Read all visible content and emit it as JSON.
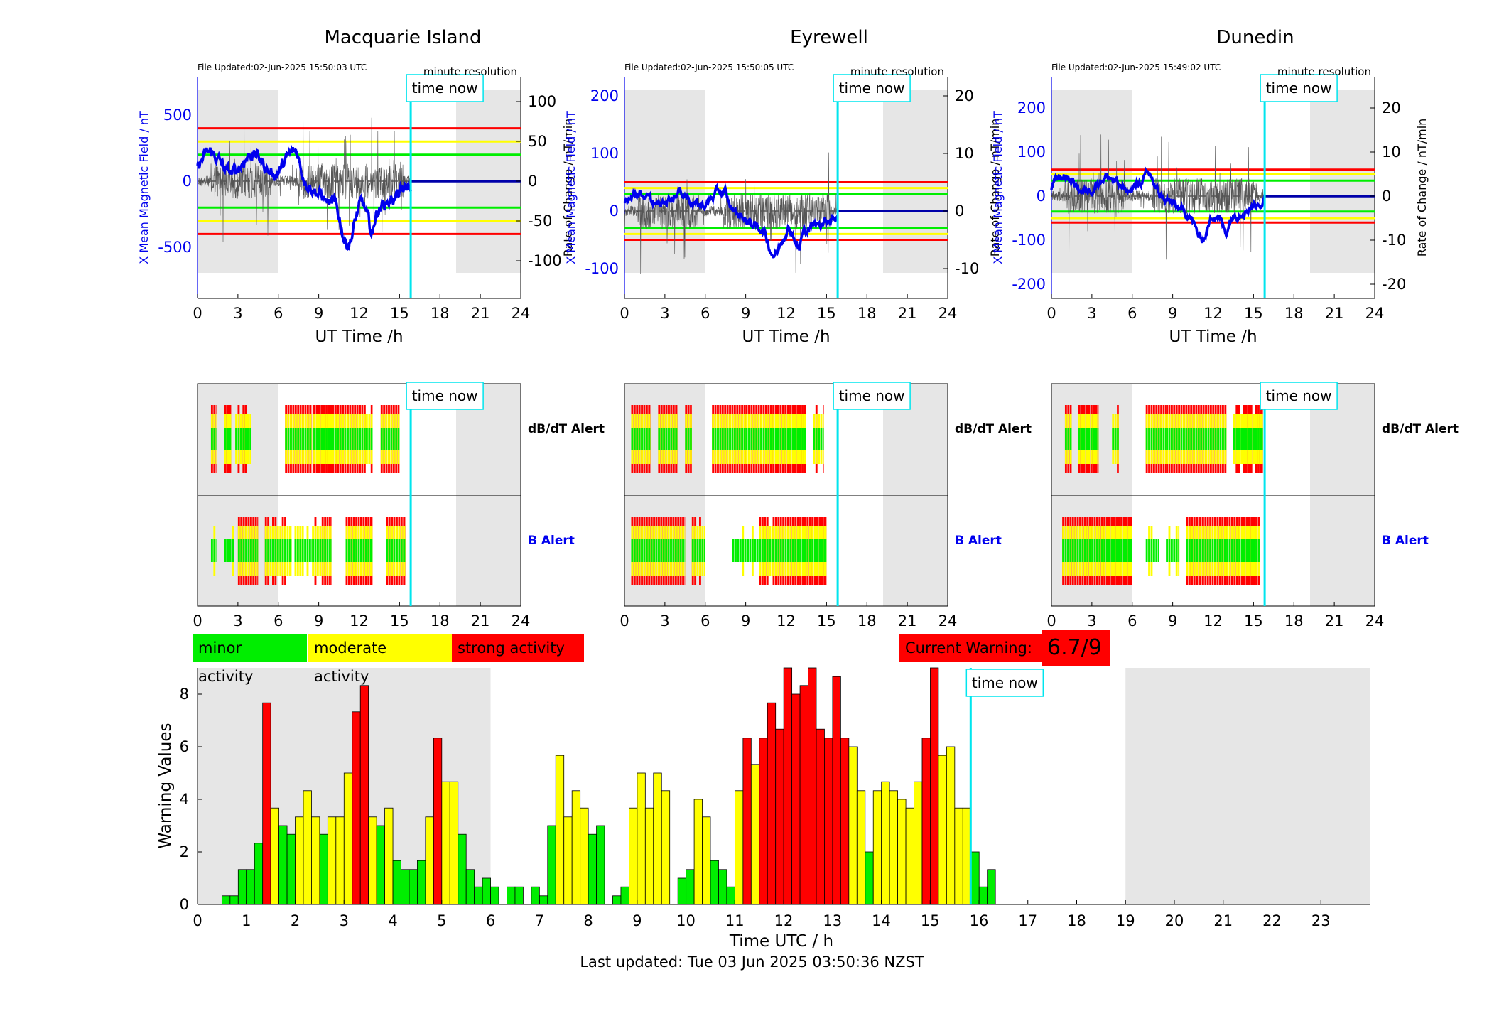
{
  "stations": [
    {
      "name": "Macquarie Island",
      "file_updated": "File Updated:02-Jun-2025 15:50:03 UTC",
      "resolution": "minute resolution",
      "left_ylabel": "X Mean Magnetic Field / nT",
      "right_ylabel": "Rate of Change / nT/min",
      "left_ticks": [
        "500",
        "0",
        "-500"
      ],
      "right_ticks": [
        "100",
        "50",
        "0",
        "-50",
        "-100"
      ],
      "color_levels": {
        "green": 200,
        "yellow": 300,
        "red": 400
      }
    },
    {
      "name": "Eyrewell",
      "file_updated": "File Updated:02-Jun-2025 15:50:05 UTC",
      "resolution": "minute resolution",
      "left_ylabel": "X Mean Magnetic Field / nT",
      "right_ylabel": "Rate of Change / nT/min",
      "left_ticks": [
        "200",
        "100",
        "0",
        "-100"
      ],
      "right_ticks": [
        "20",
        "10",
        "0",
        "-10"
      ],
      "color_levels": {
        "green": 30,
        "yellow": 40,
        "red": 50
      }
    },
    {
      "name": "Dunedin",
      "file_updated": "File Updated:02-Jun-2025 15:49:02 UTC",
      "resolution": "minute resolution",
      "left_ylabel": "X Mean Magnetic Field / nT",
      "right_ylabel": "Rate of Change / nT/min",
      "left_ticks": [
        "200",
        "100",
        "0",
        "-100",
        "-200"
      ],
      "right_ticks": [
        "20",
        "10",
        "0",
        "-10",
        "-20"
      ],
      "color_levels": {
        "green": 35,
        "yellow": 50,
        "red": 60
      }
    }
  ],
  "panel_xlabel": "UT Time /h",
  "panel_xticks": [
    "0",
    "3",
    "6",
    "9",
    "12",
    "15",
    "18",
    "21",
    "24"
  ],
  "time_now_label": "time now",
  "time_now_hour": 15.83,
  "dbdt_alert_label": "dB/dT Alert",
  "b_alert_label": "B Alert",
  "legend": {
    "minor": "minor activity",
    "moderate": "moderate activity",
    "strong": "strong activity"
  },
  "current_warning_label": "Current Warning:",
  "current_warning_value": "6.7/9",
  "colors": {
    "minor": "#00ee00",
    "moderate": "#ffff00",
    "strong": "#ff0000",
    "field": "#0000ee",
    "now": "#00e5ee",
    "shade": "#e6e6e6"
  },
  "chart_data": {
    "type": "bar",
    "xlabel": "Time UTC / h",
    "ylabel": "Warning Values",
    "xlim": [
      0,
      24
    ],
    "ylim": [
      0,
      9
    ],
    "xticks": [
      "0",
      "1",
      "2",
      "3",
      "4",
      "5",
      "6",
      "7",
      "8",
      "9",
      "10",
      "11",
      "12",
      "13",
      "14",
      "15",
      "16",
      "17",
      "18",
      "19",
      "20",
      "21",
      "22",
      "23"
    ],
    "yticks": [
      "0",
      "2",
      "4",
      "6",
      "8"
    ],
    "bin_hours": 0.1667,
    "start_hour": 0.5,
    "values": [
      0.33,
      0.33,
      1.33,
      1.33,
      2.33,
      7.67,
      3.67,
      3.0,
      2.67,
      3.33,
      4.33,
      3.33,
      2.67,
      3.33,
      3.33,
      5.0,
      7.33,
      8.33,
      3.33,
      3.0,
      3.67,
      1.67,
      1.33,
      1.33,
      1.67,
      3.33,
      6.33,
      4.67,
      4.67,
      2.67,
      1.33,
      0.67,
      1.0,
      0.67,
      0,
      0.67,
      0.67,
      0,
      0.67,
      0.33,
      3.0,
      5.67,
      3.33,
      4.33,
      3.67,
      2.67,
      3.0,
      0,
      0.33,
      0.67,
      3.67,
      5.0,
      3.67,
      5.0,
      4.33,
      0,
      1.0,
      1.33,
      4.0,
      3.33,
      1.67,
      1.33,
      0.67,
      4.33,
      6.33,
      5.33,
      6.33,
      7.67,
      6.67,
      9.0,
      8.0,
      8.33,
      9.0,
      6.67,
      6.33,
      8.67,
      6.33,
      6.0,
      4.33,
      2.0,
      4.33,
      4.67,
      4.33,
      4.0,
      3.67,
      4.67,
      6.33,
      9.0,
      5.67,
      6.0,
      3.67,
      3.67,
      2.0,
      0.67,
      1.33
    ]
  },
  "last_updated": "Last updated: Tue 03 Jun 2025 03:50:36 NZST"
}
